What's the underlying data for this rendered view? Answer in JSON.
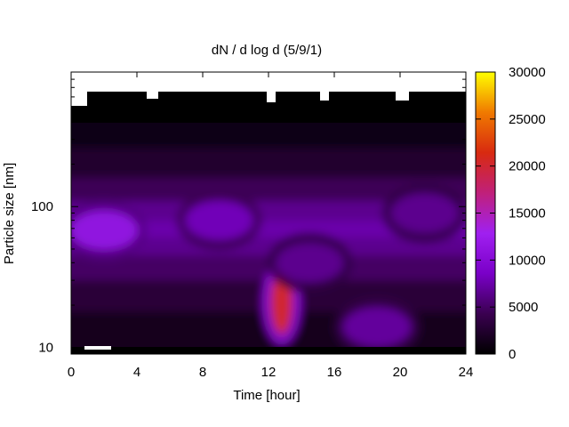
{
  "chart_data": {
    "type": "heatmap",
    "title": "dN / d log d (5/9/1)",
    "xlabel": "Time [hour]",
    "ylabel": "Particle size [nm]",
    "x_range": [
      0,
      24
    ],
    "x_ticks": [
      0,
      4,
      8,
      12,
      16,
      20,
      24
    ],
    "y_scale": "log",
    "y_range": [
      9,
      900
    ],
    "y_ticks": [
      10,
      100
    ],
    "colorbar": {
      "range": [
        0,
        30000
      ],
      "ticks": [
        0,
        5000,
        10000,
        15000,
        20000,
        25000,
        30000
      ],
      "colors": [
        "#000000",
        "#3a0050",
        "#7a00c8",
        "#a020f0",
        "#c0207a",
        "#d82a10",
        "#f07a00",
        "#ffff00"
      ]
    },
    "features": [
      {
        "t": 12.8,
        "d": 21,
        "value": 20000
      },
      {
        "t": 2.0,
        "d": 68,
        "value": 11000
      },
      {
        "t": 9.0,
        "d": 80,
        "value": 8000
      },
      {
        "t": 14.5,
        "d": 40,
        "value": 6500
      },
      {
        "t": 18.6,
        "d": 14,
        "value": 7000
      },
      {
        "t": 21.5,
        "d": 90,
        "value": 6500
      }
    ]
  }
}
